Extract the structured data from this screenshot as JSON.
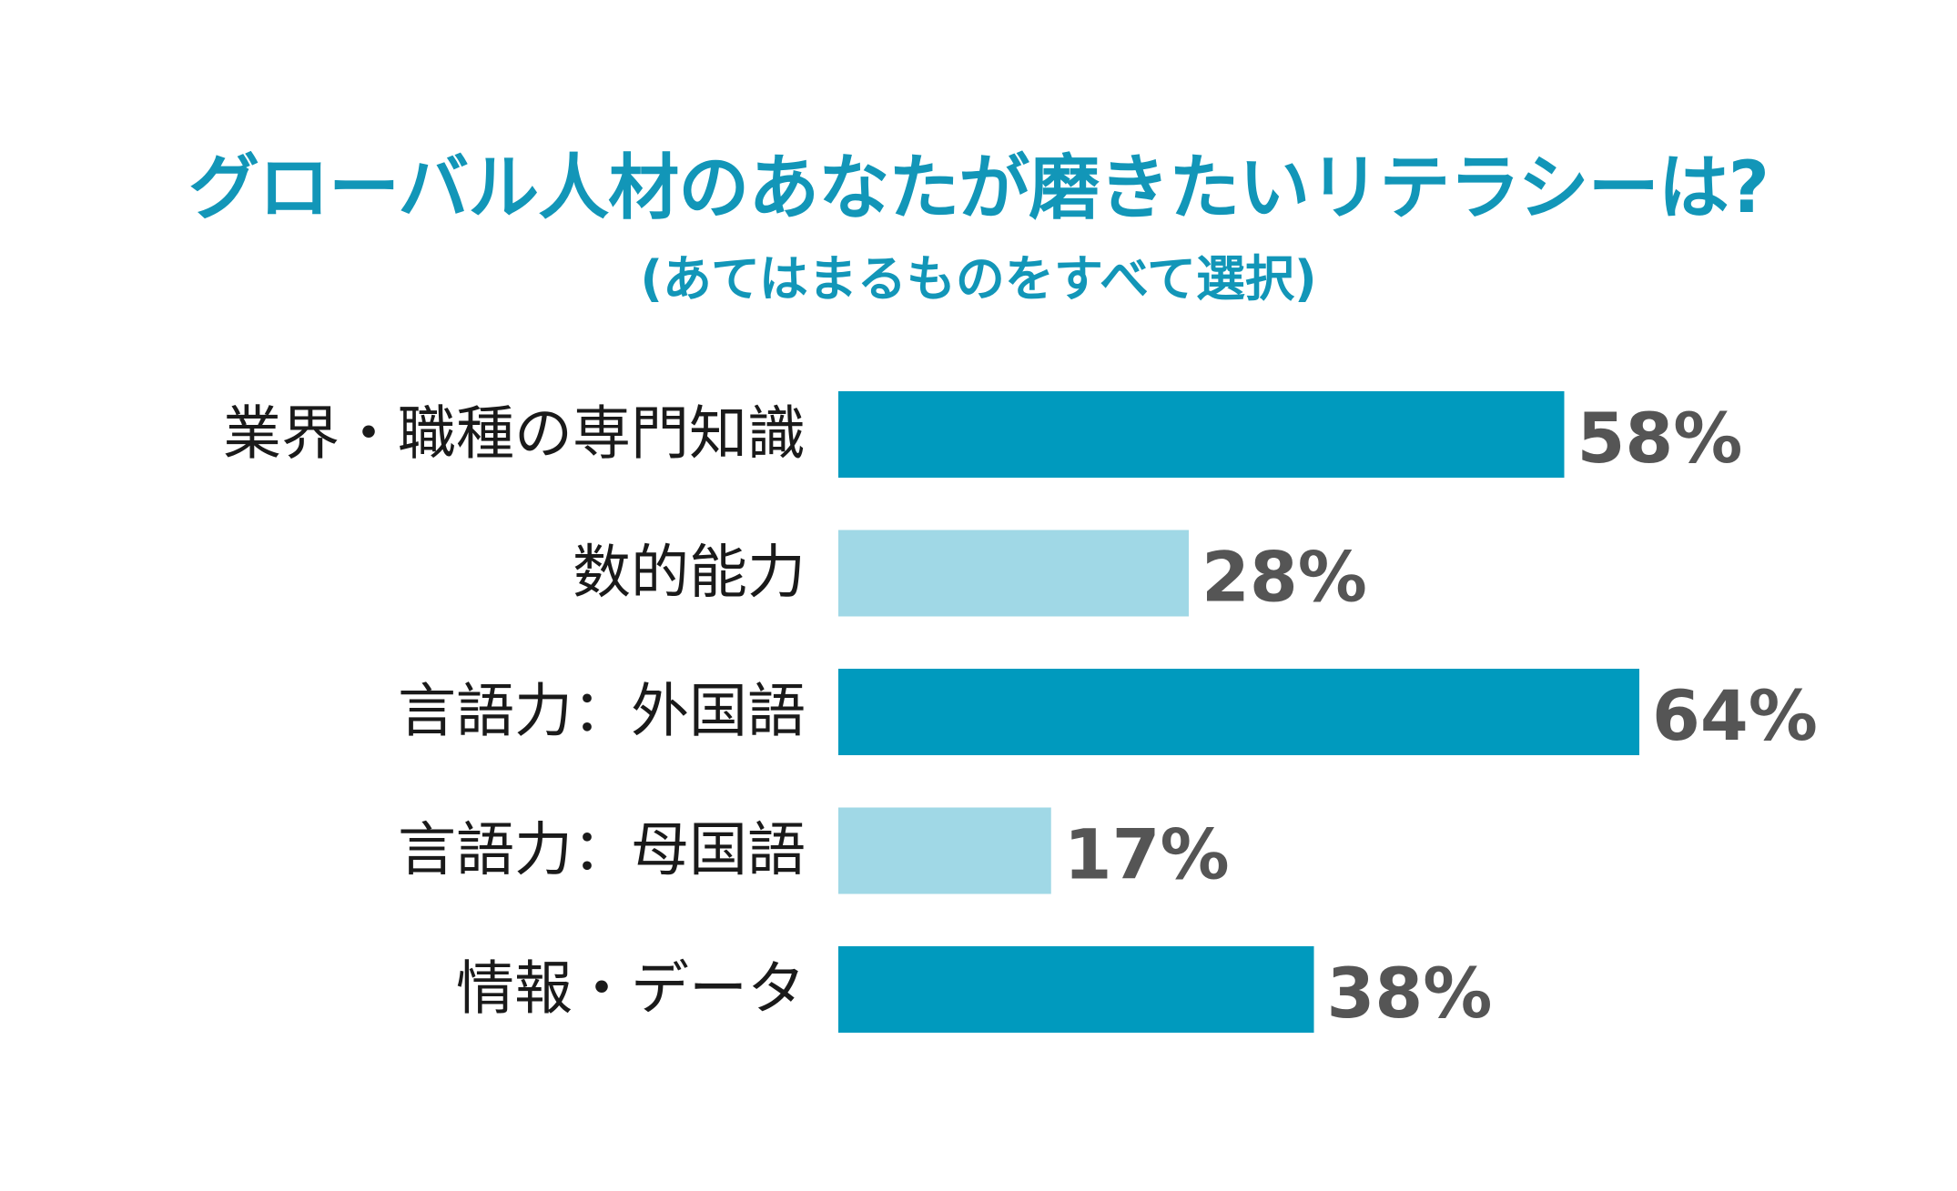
{
  "chart_data": {
    "type": "bar",
    "orientation": "horizontal",
    "title": "グローバル人材のあなたが磨きたいリテラシーは?",
    "subtitle": "(あてはまるものをすべて選択)",
    "categories": [
      "業界・職種の専門知識",
      "数的能力",
      "言語力：外国語",
      "言語力：母国語",
      "情報・データ"
    ],
    "values": [
      58,
      28,
      64,
      17,
      38
    ],
    "value_labels": [
      "58%",
      "28%",
      "64%",
      "17%",
      "38%"
    ],
    "unit": "%",
    "xlim": [
      0,
      100
    ],
    "grid": false,
    "legend": "none"
  },
  "colors": {
    "title": "#1296b8",
    "bar_dark": "#009abe",
    "bar_light": "#a0d8e6",
    "category_text": "#1a1a1a",
    "value_text": "#555555"
  },
  "bar_color_keys": [
    "bar_dark",
    "bar_light",
    "bar_dark",
    "bar_light",
    "bar_dark"
  ]
}
